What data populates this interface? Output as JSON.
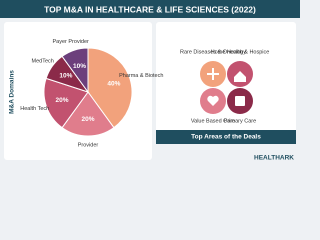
{
  "chart_data": {
    "type": "pie",
    "title": "TOP M&A IN HEALTHCARE & LIFE SCIENCES (2022)",
    "side_label": "M&A Domains",
    "categories": [
      "Pharma & Biotech",
      "Provider",
      "Health Tech",
      "MedTech",
      "Payer Provider"
    ],
    "values": [
      40,
      20,
      20,
      10,
      10
    ],
    "value_labels": [
      "40%",
      "20%",
      "20%",
      "10%",
      "10%"
    ],
    "colors": [
      "#f2a27c",
      "#e07d8c",
      "#c2526f",
      "#8b2a49",
      "#6c3f7c"
    ]
  },
  "areas": {
    "items": [
      "Rare Diseases & Oncology",
      "Home Health & Hospice",
      "Value Based Care",
      "Primary Care"
    ],
    "caption": "Top Areas of the Deals"
  },
  "brand": "HEALTHARK"
}
